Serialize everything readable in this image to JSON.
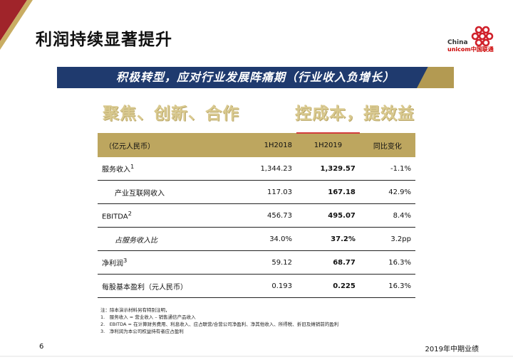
{
  "slide": {
    "title": "利润持续显著提升",
    "logo": {
      "line1": "China",
      "line2": "unicom中国联通"
    },
    "banner": "积极转型，应对行业发展阵痛期（行业收入负增长）",
    "focus_left": "聚焦、创新、合作",
    "focus_right": "控成本，提效益",
    "page_number": "6",
    "footer": "2019年中期业绩"
  },
  "table": {
    "headers": [
      "（亿元人民币）",
      "1H2018",
      "1H2019",
      "同比变化"
    ],
    "rows": [
      {
        "label": "服务收入",
        "sup": "1",
        "v2018": "1,344.23",
        "v2019": "1,329.57",
        "change": "-1.1%"
      },
      {
        "label": "产业互联网收入",
        "sup": "",
        "v2018": "117.03",
        "v2019": "167.18",
        "change": "42.9%"
      },
      {
        "label": "EBITDA",
        "sup": "2",
        "v2018": "456.73",
        "v2019": "495.07",
        "change": "8.4%"
      },
      {
        "label": "占服务收入比",
        "sup": "",
        "v2018": "34.0%",
        "v2019": "37.2%",
        "change": "3.2pp"
      },
      {
        "label": "净利润",
        "sup": "3",
        "v2018": "59.12",
        "v2019": "68.77",
        "change": "16.3%"
      },
      {
        "label": "每股基本盈利（元人民币）",
        "sup": "",
        "v2018": "0.193",
        "v2019": "0.225",
        "change": "16.3%"
      }
    ]
  },
  "notes": [
    "注：除本演示材料另有特别注明，",
    "1.　服务收入 = 营业收入 – 销售通信产品收入",
    "2.　EBITDA = 在计算财务费用、利息收入、应占联营/合营公司净盈利、净其他收入、所得税、折旧及摊销前的盈利",
    "3.　净利润为本公司权益持有者应占盈利"
  ],
  "colors": {
    "navy": "#1f3a6e",
    "gold": "#bda65f",
    "accent_red": "#d23b3b",
    "light_gold": "#d9c98f"
  }
}
